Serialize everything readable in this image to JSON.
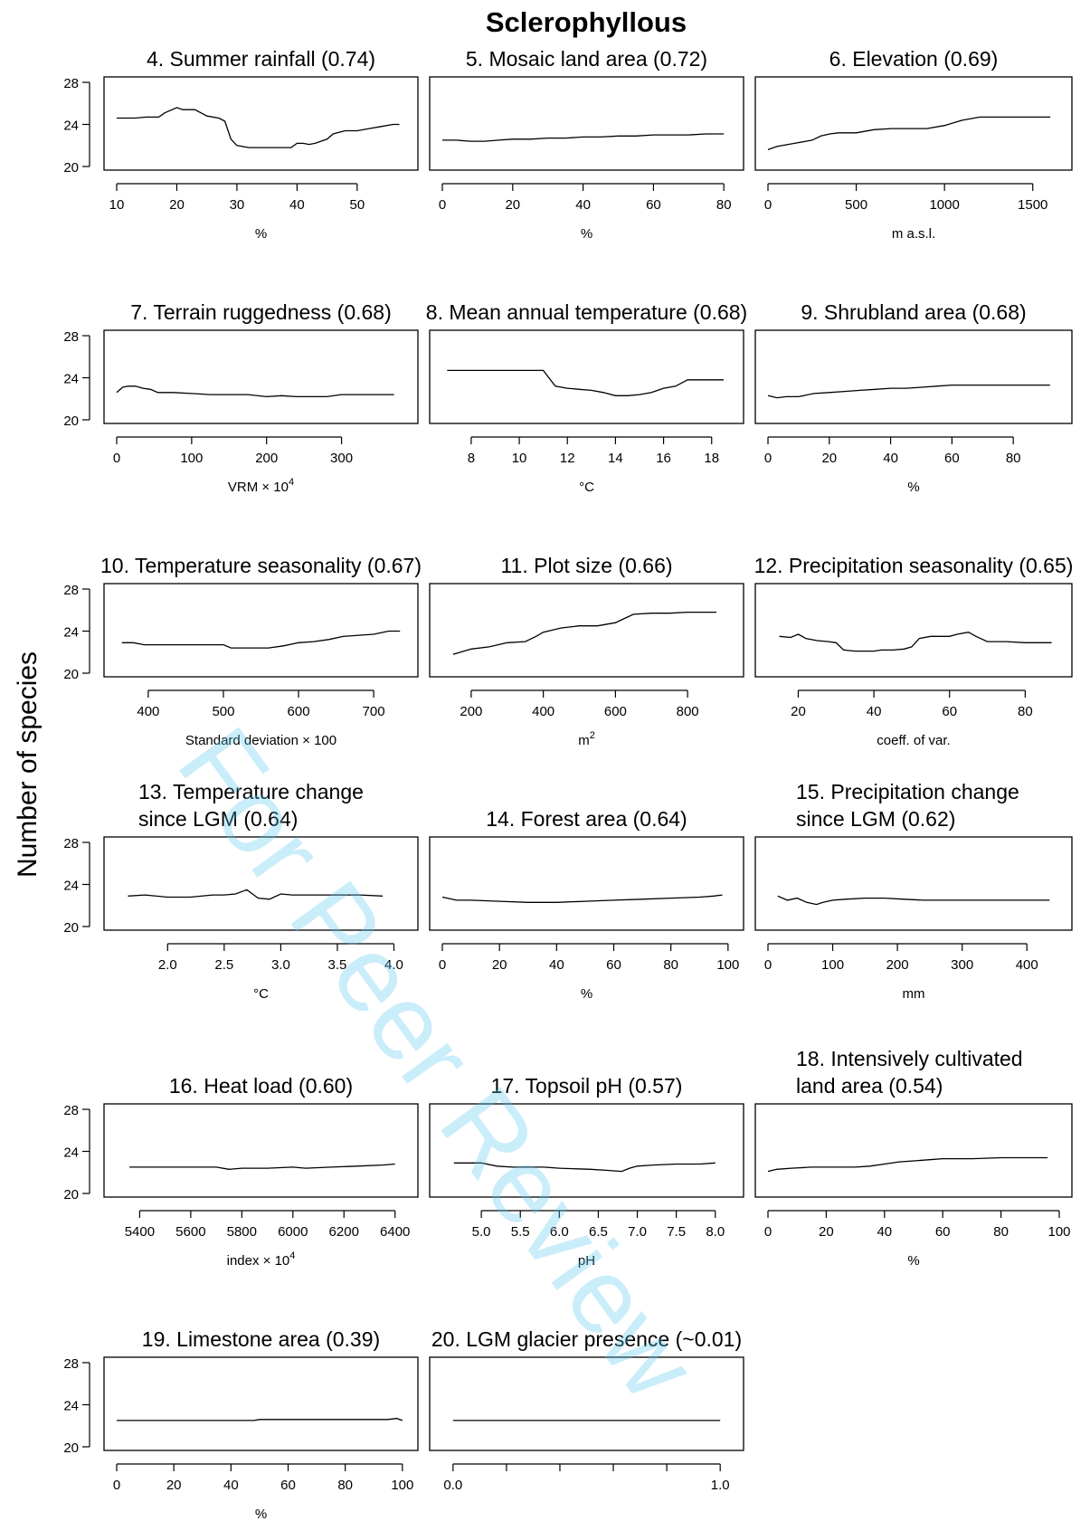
{
  "figure": {
    "title": "Sclerophyllous",
    "ylabel": "Number of species",
    "watermark": "For Peer Review"
  },
  "chart_data": [
    {
      "type": "line",
      "title": "4. Summer rainfall (0.74)",
      "xlabel": "%",
      "xlim": [
        10,
        58
      ],
      "ylim": [
        20,
        28
      ],
      "xticks": [
        "10",
        "20",
        "30",
        "40",
        "50"
      ],
      "yticks": [
        "20",
        "24",
        "28"
      ],
      "x": [
        10,
        13,
        15,
        17,
        18,
        20,
        21,
        23,
        25,
        27,
        28,
        29,
        30,
        32,
        35,
        37,
        39,
        40,
        41,
        42,
        43,
        45,
        46,
        48,
        50,
        52,
        54,
        56,
        57
      ],
      "y": [
        24.6,
        24.6,
        24.7,
        24.7,
        25.1,
        25.6,
        25.4,
        25.4,
        24.8,
        24.6,
        24.3,
        22.6,
        22.0,
        21.8,
        21.8,
        21.8,
        21.8,
        22.2,
        22.2,
        22.1,
        22.2,
        22.6,
        23.1,
        23.4,
        23.4,
        23.6,
        23.8,
        24.0,
        24.0
      ]
    },
    {
      "type": "line",
      "title": "5. Mosaic land area (0.72)",
      "xlabel": "%",
      "xlim": [
        0,
        82
      ],
      "ylim": [
        20,
        28
      ],
      "xticks": [
        "0",
        "20",
        "40",
        "60",
        "80"
      ],
      "yticks": [
        "20",
        "24",
        "28"
      ],
      "x": [
        0,
        4,
        8,
        12,
        16,
        20,
        25,
        30,
        35,
        40,
        45,
        50,
        55,
        60,
        65,
        70,
        75,
        80
      ],
      "y": [
        22.5,
        22.5,
        22.4,
        22.4,
        22.5,
        22.6,
        22.6,
        22.7,
        22.7,
        22.8,
        22.8,
        22.9,
        22.9,
        23.0,
        23.0,
        23.0,
        23.1,
        23.1
      ]
    },
    {
      "type": "line",
      "title": "6. Elevation (0.69)",
      "xlabel": "m a.s.l.",
      "xlim": [
        0,
        1650
      ],
      "ylim": [
        20,
        28
      ],
      "xticks": [
        "0",
        "500",
        "1000",
        "1500"
      ],
      "yticks": [
        "20",
        "24",
        "28"
      ],
      "x": [
        0,
        50,
        150,
        250,
        300,
        350,
        400,
        500,
        600,
        700,
        800,
        900,
        1000,
        1100,
        1200,
        1300,
        1400,
        1500,
        1600
      ],
      "y": [
        21.6,
        21.9,
        22.2,
        22.5,
        22.9,
        23.1,
        23.2,
        23.2,
        23.5,
        23.6,
        23.6,
        23.6,
        23.9,
        24.4,
        24.7,
        24.7,
        24.7,
        24.7,
        24.7
      ]
    },
    {
      "type": "line",
      "title": "7. Terrain ruggedness (0.68)",
      "xlabel": "VRM × 10",
      "xlabel_sup": "4",
      "xlim": [
        0,
        385
      ],
      "ylim": [
        20,
        28
      ],
      "xticks": [
        "0",
        "100",
        "200",
        "300"
      ],
      "yticks": [
        "20",
        "24",
        "28"
      ],
      "x": [
        0,
        8,
        15,
        25,
        35,
        45,
        55,
        75,
        100,
        125,
        150,
        175,
        200,
        220,
        240,
        260,
        280,
        300,
        330,
        370
      ],
      "y": [
        22.6,
        23.1,
        23.2,
        23.2,
        23.0,
        22.9,
        22.6,
        22.6,
        22.5,
        22.4,
        22.4,
        22.4,
        22.2,
        22.3,
        22.2,
        22.2,
        22.2,
        22.4,
        22.4,
        22.4
      ]
    },
    {
      "type": "line",
      "title": "8. Mean annual temperature (0.68)",
      "xlabel": "°C",
      "xlim": [
        6.8,
        18.8
      ],
      "ylim": [
        20,
        28
      ],
      "xticks": [
        "8",
        "10",
        "12",
        "14",
        "16",
        "18"
      ],
      "yticks": [
        "20",
        "24",
        "28"
      ],
      "x": [
        7,
        8,
        9,
        10,
        10.5,
        11,
        11.5,
        12,
        12.5,
        13,
        13.5,
        14,
        14.5,
        15,
        15.5,
        16,
        16.5,
        17,
        17.5,
        18,
        18.5
      ],
      "y": [
        24.7,
        24.7,
        24.7,
        24.7,
        24.7,
        24.7,
        23.2,
        23.0,
        22.9,
        22.8,
        22.6,
        22.3,
        22.3,
        22.4,
        22.6,
        23.0,
        23.2,
        23.8,
        23.8,
        23.8,
        23.8
      ]
    },
    {
      "type": "line",
      "title": "9. Shrubland area (0.68)",
      "xlabel": "%",
      "xlim": [
        0,
        95
      ],
      "ylim": [
        20,
        28
      ],
      "xticks": [
        "0",
        "20",
        "40",
        "60",
        "80"
      ],
      "yticks": [
        "20",
        "24",
        "28"
      ],
      "x": [
        0,
        3,
        6,
        10,
        15,
        20,
        25,
        30,
        35,
        40,
        45,
        50,
        55,
        60,
        65,
        70,
        80,
        92
      ],
      "y": [
        22.3,
        22.1,
        22.2,
        22.2,
        22.5,
        22.6,
        22.7,
        22.8,
        22.9,
        23.0,
        23.0,
        23.1,
        23.2,
        23.3,
        23.3,
        23.3,
        23.3,
        23.3
      ]
    },
    {
      "type": "line",
      "title": "10. Temperature seasonality (0.67)",
      "xlabel": "Standard deviation × 100",
      "xlim": [
        358,
        742
      ],
      "ylim": [
        20,
        28
      ],
      "xticks": [
        "400",
        "500",
        "600",
        "700"
      ],
      "yticks": [
        "20",
        "24",
        "28"
      ],
      "x": [
        365,
        380,
        395,
        410,
        450,
        500,
        510,
        520,
        540,
        560,
        580,
        600,
        620,
        640,
        660,
        680,
        700,
        720,
        735
      ],
      "y": [
        22.9,
        22.9,
        22.7,
        22.7,
        22.7,
        22.7,
        22.4,
        22.4,
        22.4,
        22.4,
        22.6,
        22.9,
        23.0,
        23.2,
        23.5,
        23.6,
        23.7,
        24.0,
        24.0
      ]
    },
    {
      "type": "line",
      "title": "11. Plot size (0.66)",
      "xlabel": "m",
      "xlabel_sup": "2",
      "xlim": [
        120,
        920
      ],
      "ylim": [
        20,
        28
      ],
      "xticks": [
        "200",
        "400",
        "600",
        "800"
      ],
      "yticks": [
        "20",
        "24",
        "28"
      ],
      "x": [
        150,
        200,
        250,
        300,
        350,
        380,
        400,
        450,
        500,
        550,
        600,
        625,
        650,
        700,
        750,
        800,
        880
      ],
      "y": [
        21.8,
        22.3,
        22.5,
        22.9,
        23.0,
        23.5,
        23.9,
        24.3,
        24.5,
        24.5,
        24.8,
        25.2,
        25.6,
        25.7,
        25.7,
        25.8,
        25.8
      ]
    },
    {
      "type": "line",
      "title": "12. Precipitation seasonality (0.65)",
      "xlabel": "coeff. of var.",
      "xlim": [
        12,
        89
      ],
      "ylim": [
        20,
        28
      ],
      "xticks": [
        "20",
        "40",
        "60",
        "80"
      ],
      "yticks": [
        "20",
        "24",
        "28"
      ],
      "x": [
        15,
        18,
        20,
        22,
        25,
        28,
        30,
        32,
        35,
        38,
        40,
        42,
        45,
        48,
        50,
        52,
        55,
        58,
        60,
        62,
        65,
        67,
        70,
        75,
        80,
        87
      ],
      "y": [
        23.5,
        23.4,
        23.7,
        23.3,
        23.1,
        23.0,
        22.9,
        22.2,
        22.1,
        22.1,
        22.1,
        22.2,
        22.2,
        22.3,
        22.5,
        23.3,
        23.5,
        23.5,
        23.5,
        23.7,
        23.9,
        23.5,
        23.0,
        23.0,
        22.9,
        22.9
      ]
    },
    {
      "type": "line",
      "title": "13. Temperature change since LGM (0.64)",
      "title_lines": [
        "13. Temperature change",
        "since LGM (0.64)"
      ],
      "xlabel": "°C",
      "xlim": [
        1.55,
        4.1
      ],
      "ylim": [
        20,
        28
      ],
      "xticks": [
        "2.0",
        "2.5",
        "3.0",
        "3.5",
        "4.0"
      ],
      "yticks": [
        "20",
        "24",
        "28"
      ],
      "x": [
        1.65,
        1.8,
        2.0,
        2.2,
        2.4,
        2.5,
        2.6,
        2.7,
        2.75,
        2.8,
        2.9,
        3.0,
        3.1,
        3.3,
        3.5,
        3.7,
        3.9
      ],
      "y": [
        22.9,
        23.0,
        22.8,
        22.8,
        23.0,
        23.0,
        23.1,
        23.5,
        23.1,
        22.7,
        22.6,
        23.1,
        23.0,
        23.0,
        23.0,
        23.0,
        22.9
      ]
    },
    {
      "type": "line",
      "title": "14. Forest area (0.64)",
      "xlabel": "%",
      "xlim": [
        0,
        101
      ],
      "ylim": [
        20,
        28
      ],
      "xticks": [
        "0",
        "20",
        "40",
        "60",
        "80",
        "100"
      ],
      "yticks": [
        "20",
        "24",
        "28"
      ],
      "x": [
        0,
        5,
        10,
        20,
        30,
        40,
        50,
        60,
        70,
        80,
        90,
        95,
        98
      ],
      "y": [
        22.8,
        22.5,
        22.5,
        22.4,
        22.3,
        22.3,
        22.4,
        22.5,
        22.6,
        22.7,
        22.8,
        22.9,
        23.0
      ]
    },
    {
      "type": "line",
      "title": "15. Precipitation change since LGM (0.62)",
      "title_lines": [
        "15. Precipitation change",
        "since LGM (0.62)"
      ],
      "xlabel": "mm",
      "xlim": [
        0,
        450
      ],
      "ylim": [
        20,
        28
      ],
      "xticks": [
        "0",
        "100",
        "200",
        "300",
        "400"
      ],
      "yticks": [
        "20",
        "24",
        "28"
      ],
      "x": [
        15,
        30,
        45,
        60,
        75,
        85,
        100,
        120,
        150,
        180,
        210,
        240,
        300,
        400,
        435
      ],
      "y": [
        22.9,
        22.5,
        22.7,
        22.3,
        22.1,
        22.3,
        22.5,
        22.6,
        22.7,
        22.7,
        22.6,
        22.5,
        22.5,
        22.5,
        22.5
      ]
    },
    {
      "type": "line",
      "title": "16. Heat load (0.60)",
      "xlabel": "index × 10",
      "xlabel_sup": "4",
      "xlim": [
        5310,
        6440
      ],
      "ylim": [
        20,
        28
      ],
      "xticks": [
        "5400",
        "5600",
        "5800",
        "6000",
        "6200",
        "6400"
      ],
      "yticks": [
        "20",
        "24",
        "28"
      ],
      "x": [
        5360,
        5500,
        5700,
        5750,
        5800,
        5900,
        6000,
        6050,
        6150,
        6250,
        6350,
        6400
      ],
      "y": [
        22.5,
        22.5,
        22.5,
        22.3,
        22.4,
        22.4,
        22.5,
        22.4,
        22.5,
        22.6,
        22.7,
        22.8
      ]
    },
    {
      "type": "line",
      "title": "17. Topsoil pH (0.57)",
      "xlabel": "pH",
      "xlim": [
        4.5,
        8.2
      ],
      "ylim": [
        20,
        28
      ],
      "xticks": [
        "5.0",
        "5.5",
        "6.0",
        "6.5",
        "7.0",
        "7.5",
        "8.0"
      ],
      "yticks": [
        "20",
        "24",
        "28"
      ],
      "x": [
        4.65,
        5.0,
        5.2,
        5.4,
        5.8,
        6.0,
        6.4,
        6.6,
        6.8,
        6.9,
        7.0,
        7.2,
        7.5,
        7.8,
        8.0
      ],
      "y": [
        22.9,
        22.9,
        22.6,
        22.5,
        22.5,
        22.4,
        22.3,
        22.2,
        22.1,
        22.4,
        22.6,
        22.7,
        22.8,
        22.8,
        22.9
      ]
    },
    {
      "type": "line",
      "title": "18. Intensively cultivated land area (0.54)",
      "title_lines": [
        "18. Intensively cultivated",
        "land area (0.54)"
      ],
      "xlabel": "%",
      "xlim": [
        0,
        100
      ],
      "ylim": [
        20,
        28
      ],
      "xticks": [
        "0",
        "20",
        "40",
        "60",
        "80",
        "100"
      ],
      "yticks": [
        "20",
        "24",
        "28"
      ],
      "x": [
        0,
        3,
        8,
        15,
        25,
        30,
        35,
        40,
        45,
        50,
        55,
        60,
        70,
        80,
        90,
        96
      ],
      "y": [
        22.1,
        22.3,
        22.4,
        22.5,
        22.5,
        22.5,
        22.6,
        22.8,
        23.0,
        23.1,
        23.2,
        23.3,
        23.3,
        23.4,
        23.4,
        23.4
      ]
    },
    {
      "type": "line",
      "title": "19. Limestone area (0.39)",
      "xlabel": "%",
      "xlim": [
        0,
        101
      ],
      "ylim": [
        20,
        28
      ],
      "xticks": [
        "0",
        "20",
        "40",
        "60",
        "80",
        "100"
      ],
      "yticks": [
        "20",
        "24",
        "28"
      ],
      "x": [
        0,
        20,
        40,
        48,
        50,
        60,
        70,
        80,
        90,
        95,
        98,
        100
      ],
      "y": [
        22.5,
        22.5,
        22.5,
        22.5,
        22.6,
        22.6,
        22.6,
        22.6,
        22.6,
        22.6,
        22.7,
        22.5
      ]
    },
    {
      "type": "line",
      "title": "20. LGM glacier presence (~0.01)",
      "xlabel": "",
      "xlim": [
        -0.04,
        1.04
      ],
      "ylim": [
        20,
        28
      ],
      "xticks": [
        "0.0",
        "",
        "",
        "",
        "",
        "1.0"
      ],
      "yticks": [
        "20",
        "24",
        "28"
      ],
      "x": [
        0,
        1
      ],
      "y": [
        22.5,
        22.5
      ]
    }
  ]
}
